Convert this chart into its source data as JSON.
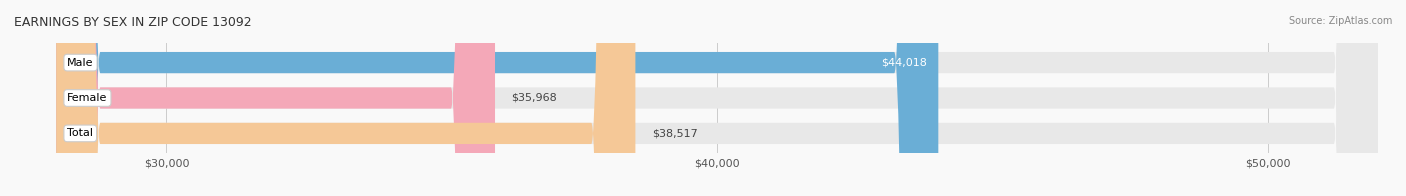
{
  "title": "EARNINGS BY SEX IN ZIP CODE 13092",
  "source": "Source: ZipAtlas.com",
  "categories": [
    "Male",
    "Female",
    "Total"
  ],
  "values": [
    44018,
    35968,
    38517
  ],
  "bar_colors": [
    "#6aaed6",
    "#f4a8b8",
    "#f5c897"
  ],
  "bar_bg_color": "#e8e8e8",
  "label_bg_color": "#ffffff",
  "xmin": 28000,
  "xmax": 52000,
  "xticks": [
    30000,
    40000,
    50000
  ],
  "xtick_labels": [
    "$30,000",
    "$40,000",
    "$50,000"
  ],
  "value_labels": [
    "$44,018",
    "$35,968",
    "$38,517"
  ],
  "label_inside_bar": [
    true,
    false,
    false
  ],
  "figsize": [
    14.06,
    1.96
  ],
  "dpi": 100,
  "bar_height": 0.6,
  "title_fontsize": 9,
  "tick_fontsize": 8,
  "value_fontsize": 8,
  "cat_fontsize": 8
}
